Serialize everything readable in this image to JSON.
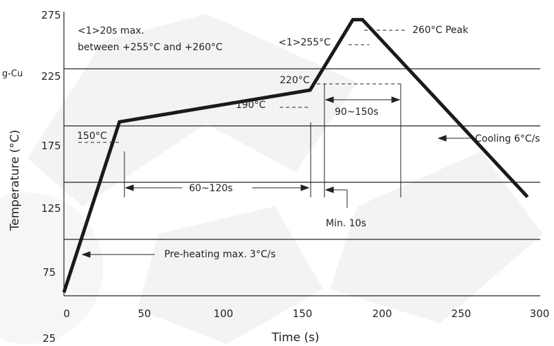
{
  "chart_data": {
    "type": "line",
    "title": "",
    "xlabel": "Time (s)",
    "ylabel": "Temperature (°C)",
    "xlim": [
      0,
      300
    ],
    "ylim": [
      25,
      275
    ],
    "x_ticks": [
      "0",
      "50",
      "100",
      "150",
      "200",
      "250",
      "300"
    ],
    "y_ticks": [
      "275",
      "225",
      "175",
      "125",
      "75",
      "25"
    ],
    "grid": "horizontal",
    "series": [
      {
        "x": [
          0,
          35,
          155,
          182,
          188,
          292
        ],
        "y": [
          28,
          178,
          206,
          268,
          268,
          112
        ]
      }
    ],
    "annotations": {
      "note_line1": "<1>20s max.",
      "note_line2": "between +255°C and +260°C",
      "peak": "260°C Peak",
      "t255": "<1>255°C",
      "t220": "220°C",
      "t190": "190°C",
      "t150": "150°C",
      "reflow_window": "90~150s",
      "cooling": "Cooling 6°C/s",
      "preheat_window": "60~120s",
      "min10": "Min. 10s",
      "preheat_rate": "Pre-heating max. 3°C/s"
    },
    "edge_fragment": "g-Cu"
  },
  "colors": {
    "curve": "#1a1a1a",
    "grid": "#222222",
    "text": "#222222",
    "watermark": "#f2f2f2"
  }
}
